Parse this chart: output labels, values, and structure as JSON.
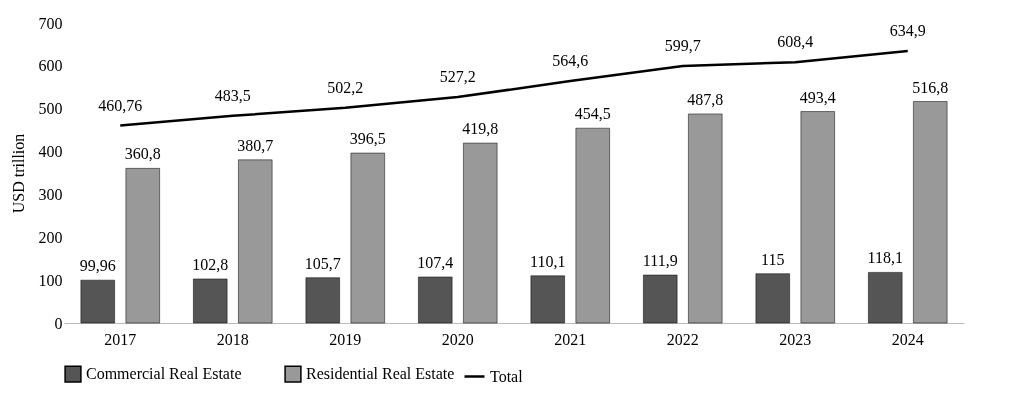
{
  "chart_data": {
    "type": "bar",
    "ylabel": "USD trillion",
    "categories": [
      "2017",
      "2018",
      "2019",
      "2020",
      "2021",
      "2022",
      "2023",
      "2024"
    ],
    "ylim": [
      0,
      700
    ],
    "yticks": [
      0,
      100,
      200,
      300,
      400,
      500,
      600,
      700
    ],
    "legend": "bottom",
    "series": [
      {
        "name": "Commercial Real Estate",
        "color": "#555555",
        "values": [
          99.96,
          102.8,
          105.7,
          107.4,
          110.1,
          111.9,
          115,
          118.1
        ],
        "value_labels": [
          "99,96",
          "102,8",
          "105,7",
          "107,4",
          "110,1",
          "111,9",
          "115",
          "118,1"
        ]
      },
      {
        "name": "Residential Real Estate",
        "color": "#999999",
        "values": [
          360.8,
          380.7,
          396.5,
          419.8,
          454.5,
          487.8,
          493.4,
          516.8
        ],
        "value_labels": [
          "360,8",
          "380,7",
          "396,5",
          "419,8",
          "454,5",
          "487,8",
          "493,4",
          "516,8"
        ]
      },
      {
        "name": "Total",
        "type": "line",
        "color": "#000000",
        "values": [
          460.76,
          483.5,
          502.2,
          527.2,
          564.6,
          599.7,
          608.4,
          634.9
        ],
        "value_labels": [
          "460,76",
          "483,5",
          "502,2",
          "527,2",
          "564,6",
          "599,7",
          "608,4",
          "634,9"
        ]
      }
    ]
  }
}
